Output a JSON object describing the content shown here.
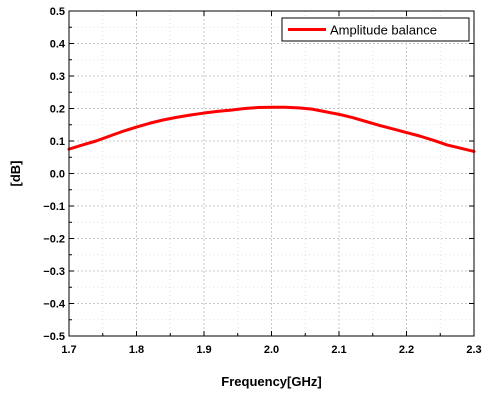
{
  "chart_data": {
    "type": "line",
    "title": "",
    "xlabel": "Frequency[GHz]",
    "ylabel": "[dB]",
    "xlim": [
      1.7,
      2.3
    ],
    "ylim": [
      -0.5,
      0.5
    ],
    "x_ticks": [
      "1.7",
      "1.8",
      "1.9",
      "2.0",
      "2.1",
      "2.2",
      "2.3"
    ],
    "y_ticks": [
      "0.5",
      "0.4",
      "0.3",
      "0.2",
      "0.1",
      "0.0",
      "−0.1",
      "−0.2",
      "−0.3",
      "−0.4",
      "−0.5"
    ],
    "grid": true,
    "legend_position": "top-right",
    "series": [
      {
        "name": "Amplitude balance",
        "color": "#ff0000",
        "x": [
          1.7,
          1.72,
          1.74,
          1.76,
          1.78,
          1.8,
          1.82,
          1.84,
          1.86,
          1.88,
          1.9,
          1.92,
          1.94,
          1.96,
          1.98,
          2.0,
          2.02,
          2.04,
          2.06,
          2.08,
          2.1,
          2.12,
          2.14,
          2.16,
          2.18,
          2.2,
          2.22,
          2.24,
          2.26,
          2.28,
          2.3
        ],
        "y": [
          0.075,
          0.088,
          0.1,
          0.115,
          0.13,
          0.143,
          0.155,
          0.165,
          0.173,
          0.18,
          0.186,
          0.191,
          0.195,
          0.2,
          0.203,
          0.204,
          0.204,
          0.202,
          0.198,
          0.19,
          0.182,
          0.172,
          0.16,
          0.148,
          0.137,
          0.126,
          0.115,
          0.102,
          0.088,
          0.078,
          0.068
        ]
      }
    ]
  }
}
